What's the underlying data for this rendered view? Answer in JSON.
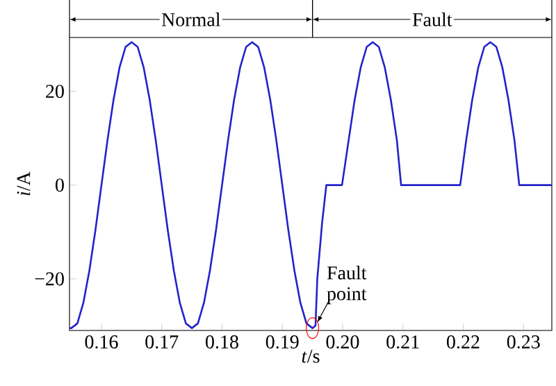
{
  "chart_data": {
    "type": "line",
    "xlabel": "*t*/s",
    "ylabel": "*i*/A",
    "xlim": [
      0.1547,
      0.2347
    ],
    "ylim": [
      -31,
      31.5
    ],
    "xticks": [
      0.16,
      0.17,
      0.18,
      0.19,
      {
        "value": 0.2,
        "label": "0.20"
      },
      0.21,
      0.22,
      0.23
    ],
    "yticks": [
      {
        "value": -20,
        "label": "−20"
      },
      0,
      20
    ],
    "grid": false,
    "marker": "none",
    "line_style": "solid",
    "annotations": [
      "Normal",
      "Fault",
      {
        "text": "Fault point",
        "x": 0.195,
        "y": -30.5
      }
    ],
    "series": [
      {
        "color": "#2222cc",
        "x": [
          0.1547,
          0.155,
          0.156,
          0.157,
          0.158,
          0.159,
          0.16,
          0.161,
          0.162,
          0.163,
          0.164,
          0.165,
          0.166,
          0.167,
          0.168,
          0.169,
          0.17,
          0.171,
          0.172,
          0.173,
          0.174,
          0.175,
          0.176,
          0.177,
          0.178,
          0.179,
          0.18,
          0.181,
          0.182,
          0.183,
          0.184,
          0.185,
          0.186,
          0.187,
          0.188,
          0.189,
          0.19,
          0.191,
          0.192,
          0.193,
          0.194,
          0.195,
          0.1955,
          0.1958,
          0.1966,
          0.1973,
          0.1999,
          0.201,
          0.202,
          0.203,
          0.204,
          0.205,
          0.206,
          0.207,
          0.208,
          0.209,
          0.2097,
          0.2195,
          0.2205,
          0.2215,
          0.2225,
          0.2235,
          0.2245,
          0.2255,
          0.2265,
          0.2275,
          0.2285,
          0.2293,
          0.2347
        ],
        "values": [
          -30.5,
          -30.5,
          -29.5,
          -25.1,
          -18.2,
          -9.6,
          0,
          9.6,
          18.2,
          25.1,
          29.5,
          30.5,
          29.5,
          25.1,
          18.2,
          9.6,
          0,
          -9.6,
          -18.2,
          -25.1,
          -29.5,
          -30.5,
          -29.5,
          -25.1,
          -18.2,
          -9.6,
          0,
          9.6,
          18.2,
          25.1,
          29.5,
          30.5,
          29.5,
          25.1,
          18.2,
          9.6,
          0,
          -9.6,
          -18.2,
          -25.1,
          -29.5,
          -30.5,
          -30,
          -20,
          -8,
          0,
          0,
          9.6,
          18.2,
          25.1,
          29.5,
          30.5,
          29.5,
          25.1,
          18.2,
          9.6,
          0,
          0,
          9.6,
          18.2,
          25.1,
          29.5,
          30.5,
          29.5,
          25.1,
          18.2,
          9.6,
          0,
          0
        ]
      }
    ]
  }
}
